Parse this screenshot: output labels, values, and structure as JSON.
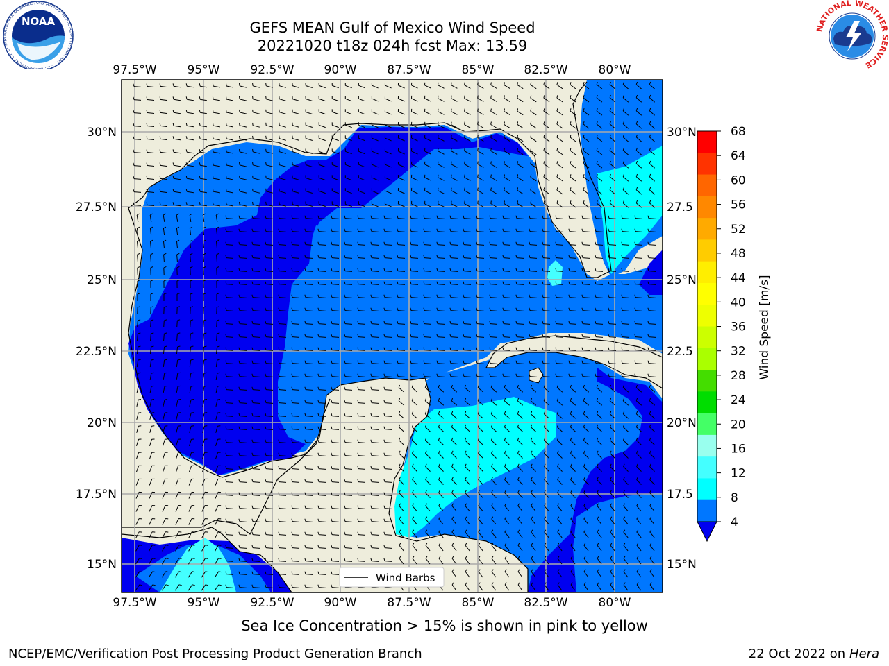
{
  "header": {
    "title_line1": "GEFS MEAN Gulf of Mexico Wind Speed",
    "title_line2": "20221020 t18z 024h fcst   Max: 13.59"
  },
  "logos": {
    "left": "NOAA",
    "left_ring_text": "NATIONAL OCEANIC AND ATMOSPHERIC ADMINISTRATION · U.S. DEPARTMENT OF COMMERCE",
    "right_ring_text": "NATIONAL WEATHER SERVICE"
  },
  "map": {
    "lon_labels": [
      "97.5°W",
      "95°W",
      "92.5°W",
      "90°W",
      "87.5°W",
      "85°W",
      "82.5°W",
      "80°W"
    ],
    "lon_values": [
      -97.5,
      -95,
      -92.5,
      -90,
      -87.5,
      -85,
      -82.5,
      -80
    ],
    "lat_labels_left": [
      "30°N",
      "27.5°N",
      "25°N",
      "22.5°N",
      "20°N",
      "17.5°N",
      "15°N"
    ],
    "lat_labels_right": [
      "30°N",
      "27.5",
      "25°N",
      "22.5",
      "20°N",
      "17.5",
      "15°N"
    ],
    "lat_values": [
      30,
      27.5,
      25,
      22.5,
      20,
      17.5,
      15
    ],
    "extent": {
      "lon_min": -98,
      "lon_max": -78.25,
      "lat_min": 14,
      "lat_max": 31.75
    },
    "legend_label": "Wind Barbs",
    "colors": {
      "land": "#eeeddc",
      "dark_blue": "#0000f0",
      "medium_blue": "#0077ff",
      "cyan": "#00ffff",
      "light_cyan": "#44ffff",
      "grid": "#aaaaaa"
    }
  },
  "colorbar": {
    "label": "Wind Speed [m/s]",
    "ticks": [
      "68",
      "64",
      "60",
      "56",
      "52",
      "48",
      "44",
      "40",
      "36",
      "32",
      "28",
      "24",
      "20",
      "16",
      "12",
      "8",
      "4"
    ],
    "colors_top_to_bottom": [
      "#ff0000",
      "#ff3300",
      "#ff6600",
      "#ff8800",
      "#ffaa00",
      "#ffcc00",
      "#ffee00",
      "#ffff00",
      "#eeff00",
      "#ccff00",
      "#aaff00",
      "#44dd00",
      "#00dd00",
      "#44ff66",
      "#99ffee",
      "#44ffff",
      "#00ffff",
      "#0077ff"
    ],
    "extend_color": "#0000f0"
  },
  "caption": "Sea Ice Concentration > 15% is shown in pink to yellow",
  "footer": {
    "left": "NCEP/EMC/Verification Post Processing Product Generation Branch",
    "right_date": "22 Oct 2022 on ",
    "right_host": "Hera"
  }
}
